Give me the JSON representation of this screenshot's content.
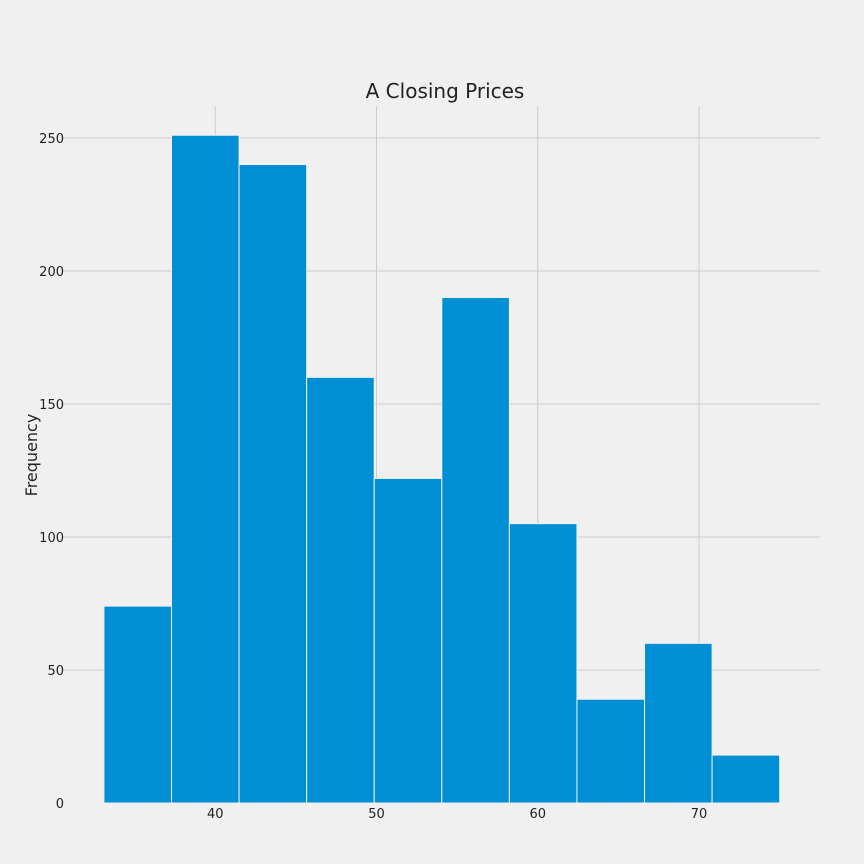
{
  "chart_data": {
    "type": "bar",
    "title": "A Closing Prices",
    "xlabel": "",
    "ylabel": "Frequency",
    "bin_edges": [
      33.1,
      37.29,
      41.48,
      45.67,
      49.86,
      54.05,
      58.24,
      62.43,
      66.62,
      70.81,
      75.0
    ],
    "values": [
      74,
      251,
      240,
      160,
      122,
      190,
      105,
      39,
      60,
      18
    ],
    "xlim": [
      30.5,
      77.5
    ],
    "ylim": [
      0,
      262
    ],
    "x_ticks": [
      40,
      50,
      60,
      70
    ],
    "y_ticks": [
      0,
      50,
      100,
      150,
      200,
      250
    ],
    "grid": true,
    "colors": {
      "bar": "#008fd5",
      "background": "#f0f0f0",
      "grid": "#cbcbcb"
    }
  }
}
